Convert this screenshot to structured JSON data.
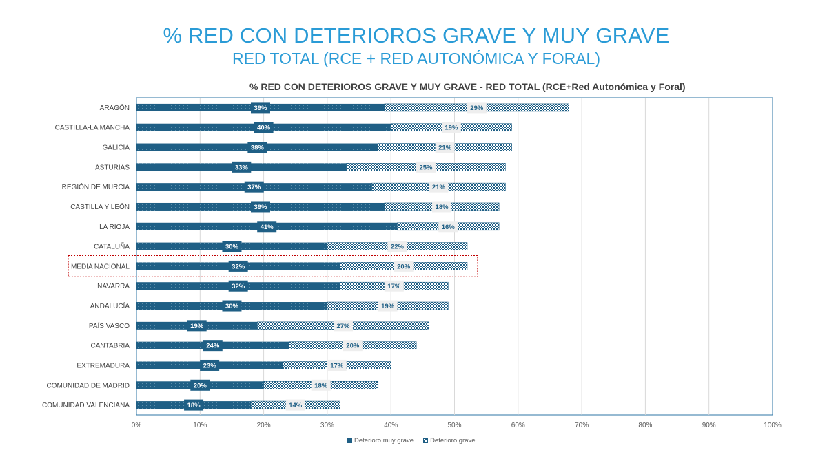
{
  "header": {
    "title": "% RED CON DETERIOROS GRAVE Y MUY GRAVE",
    "subtitle": "RED TOTAL (RCE + RED AUTONÓMICA Y FORAL)"
  },
  "chart_data": {
    "type": "bar",
    "orientation": "horizontal",
    "stacked": true,
    "title": "% RED CON DETERIOROS GRAVE Y MUY GRAVE  - RED TOTAL (RCE+Red Autonómica y Foral)",
    "categories": [
      "ARAGÓN",
      "CASTILLA-LA MANCHA",
      "GALICIA",
      "ASTURIAS",
      "REGIÓN DE MURCIA",
      "CASTILLA Y LEÓN",
      "LA RIOJA",
      "CATALUÑA",
      "MEDIA NACIONAL",
      "NAVARRA",
      "ANDALUCÍA",
      "PAÍS VASCO",
      "CANTABRIA",
      "EXTREMADURA",
      "COMUNIDAD DE MADRID",
      "COMUNIDAD VALENCIANA"
    ],
    "series": [
      {
        "name": "Deterioro muy grave",
        "values": [
          39,
          40,
          38,
          33,
          37,
          39,
          41,
          30,
          32,
          32,
          30,
          19,
          24,
          23,
          20,
          18
        ],
        "labels": [
          "39%",
          "40%",
          "38%",
          "33%",
          "37%",
          "39%",
          "41%",
          "30%",
          "32%",
          "32%",
          "30%",
          "19%",
          "24%",
          "23%",
          "20%",
          "18%"
        ]
      },
      {
        "name": "Deterioro grave",
        "values": [
          29,
          19,
          21,
          25,
          21,
          18,
          16,
          22,
          20,
          17,
          19,
          27,
          20,
          17,
          18,
          14
        ],
        "labels": [
          "29%",
          "19%",
          "21%",
          "25%",
          "21%",
          "18%",
          "16%",
          "22%",
          "20%",
          "17%",
          "19%",
          "27%",
          "20%",
          "17%",
          "18%",
          "14%"
        ]
      }
    ],
    "x_ticks": [
      "0%",
      "10%",
      "20%",
      "30%",
      "40%",
      "50%",
      "60%",
      "70%",
      "80%",
      "90%",
      "100%"
    ],
    "xlim": [
      0,
      100
    ],
    "grid": true,
    "legend": "bottom",
    "highlight_category": "MEDIA NACIONAL",
    "colors": {
      "muy_grave": "#1f5f85",
      "grave_pattern": "#1f5f85",
      "highlight_box": "#c00000",
      "title": "#2a9bd6"
    }
  }
}
